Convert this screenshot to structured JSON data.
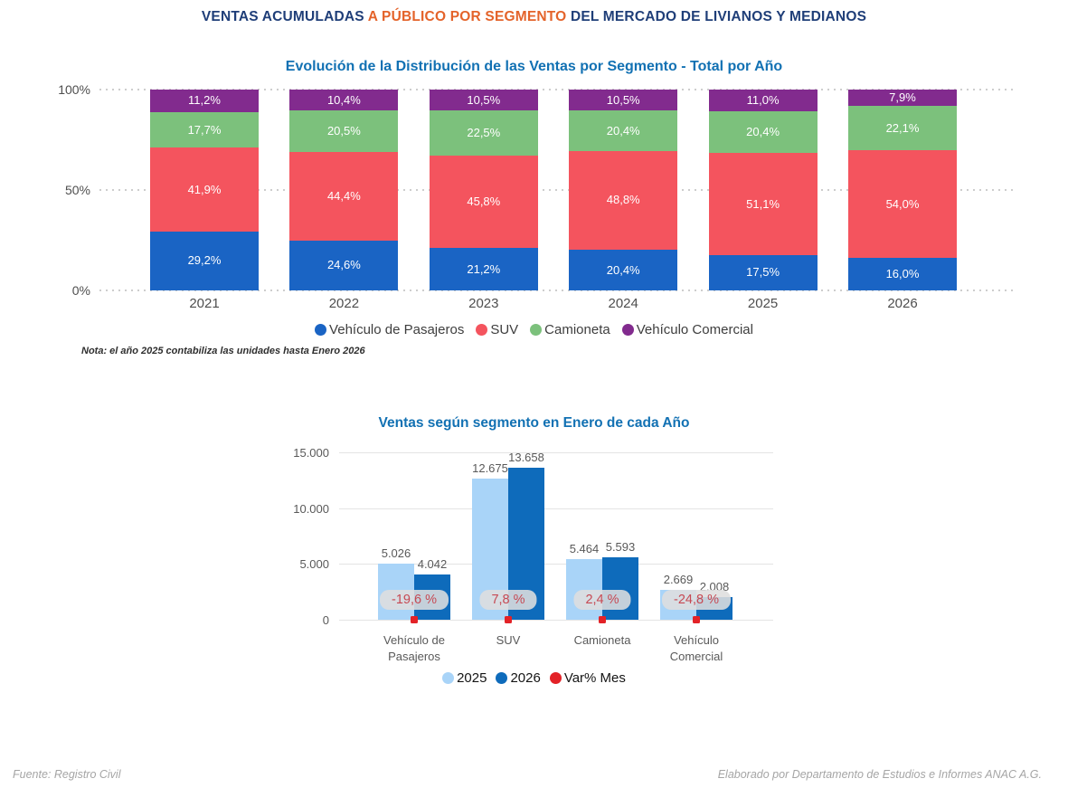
{
  "page": {
    "title_part1": "VENTAS ACUMULADAS ",
    "title_highlight": "A PÚBLICO POR SEGMENTO",
    "title_part2": " DEL MERCADO DE LIVIANOS Y MEDIANOS",
    "footer_left": "Fuente: Registro Civil",
    "footer_right": "Elaborado por Departamento de Estudios e Informes ANAC A.G."
  },
  "colors": {
    "title_navy": "#1F3E78",
    "title_orange": "#E4632A",
    "chart_title_blue": "#1271B3",
    "axis_text": "#4E4E4E",
    "label_gray": "#595959",
    "segment_label_white": "#FFFFFF",
    "legend_text_chart1": "#3E3E3E",
    "legend_text_chart2": "#141414",
    "grid_dotted": "#CDCDCD",
    "grid_solid": "#E4E4E4",
    "badge_bg": "rgba(222,222,222,0.88)",
    "badge_text": "#C64953",
    "footer_gray": "#A5A5A5"
  },
  "chart_data": [
    {
      "type": "bar",
      "variant": "stacked-100-column",
      "title": "Evolución de la Distribución de las Ventas por Segmento - Total por Año",
      "note": "Nota: el año 2025 contabiliza las unidades hasta Enero 2026",
      "categories": [
        "2021",
        "2022",
        "2023",
        "2024",
        "2025",
        "2026"
      ],
      "series": [
        {
          "name": "Vehículo de Pasajeros",
          "color": "#1A64C4",
          "values": [
            29.2,
            24.6,
            21.2,
            20.4,
            17.5,
            16.0
          ],
          "labels": [
            "29,2%",
            "24,6%",
            "21,2%",
            "20,4%",
            "17,5%",
            "16,0%"
          ]
        },
        {
          "name": "SUV",
          "color": "#F4545E",
          "values": [
            41.9,
            44.4,
            45.8,
            48.8,
            51.1,
            54.0
          ],
          "labels": [
            "41,9%",
            "44,4%",
            "45,8%",
            "48,8%",
            "51,1%",
            "54,0%"
          ]
        },
        {
          "name": "Camioneta",
          "color": "#7CC17C",
          "values": [
            17.7,
            20.5,
            22.5,
            20.4,
            20.4,
            22.1
          ],
          "labels": [
            "17,7%",
            "20,5%",
            "22,5%",
            "20,4%",
            "20,4%",
            "22,1%"
          ]
        },
        {
          "name": "Vehículo Comercial",
          "color": "#822B8E",
          "values": [
            11.2,
            10.4,
            10.5,
            10.5,
            11.0,
            7.9
          ],
          "labels": [
            "11,2%",
            "10,4%",
            "10,5%",
            "10,5%",
            "11,0%",
            "7,9%"
          ]
        }
      ],
      "y_ticks": [
        {
          "label": "100%",
          "value": 100
        },
        {
          "label": "50%",
          "value": 50
        },
        {
          "label": "0%",
          "value": 0
        }
      ],
      "ylim": [
        0,
        100
      ],
      "grid": "dotted",
      "legend_position": "bottom"
    },
    {
      "type": "bar",
      "variant": "grouped-column",
      "title": "Ventas según segmento en Enero de cada Año",
      "categories": [
        "Vehículo de\nPasajeros",
        "SUV",
        "Camioneta",
        "Vehículo\nComercial"
      ],
      "series": [
        {
          "name": "2025",
          "color": "#A9D4F8",
          "values": [
            5026,
            12675,
            5464,
            2669
          ],
          "labels": [
            "5.026",
            "12.675",
            "5.464",
            "2.669"
          ]
        },
        {
          "name": "2026",
          "color": "#0E6BBB",
          "values": [
            4042,
            13658,
            5593,
            2008
          ],
          "labels": [
            "4.042",
            "13.658",
            "5.593",
            "2.008"
          ]
        }
      ],
      "var_series": {
        "name": "Var% Mes",
        "color": "#E32227",
        "values": [
          -19.6,
          7.8,
          2.4,
          -24.8
        ],
        "labels": [
          "-19,6 %",
          "7,8 %",
          "2,4 %",
          "-24,8 %"
        ]
      },
      "y_ticks": [
        {
          "label": "15.000",
          "value": 15000
        },
        {
          "label": "10.000",
          "value": 10000
        },
        {
          "label": "5.000",
          "value": 5000
        },
        {
          "label": "0",
          "value": 0
        }
      ],
      "ylim": [
        0,
        15000
      ],
      "grid": "solid",
      "legend_position": "bottom"
    }
  ]
}
